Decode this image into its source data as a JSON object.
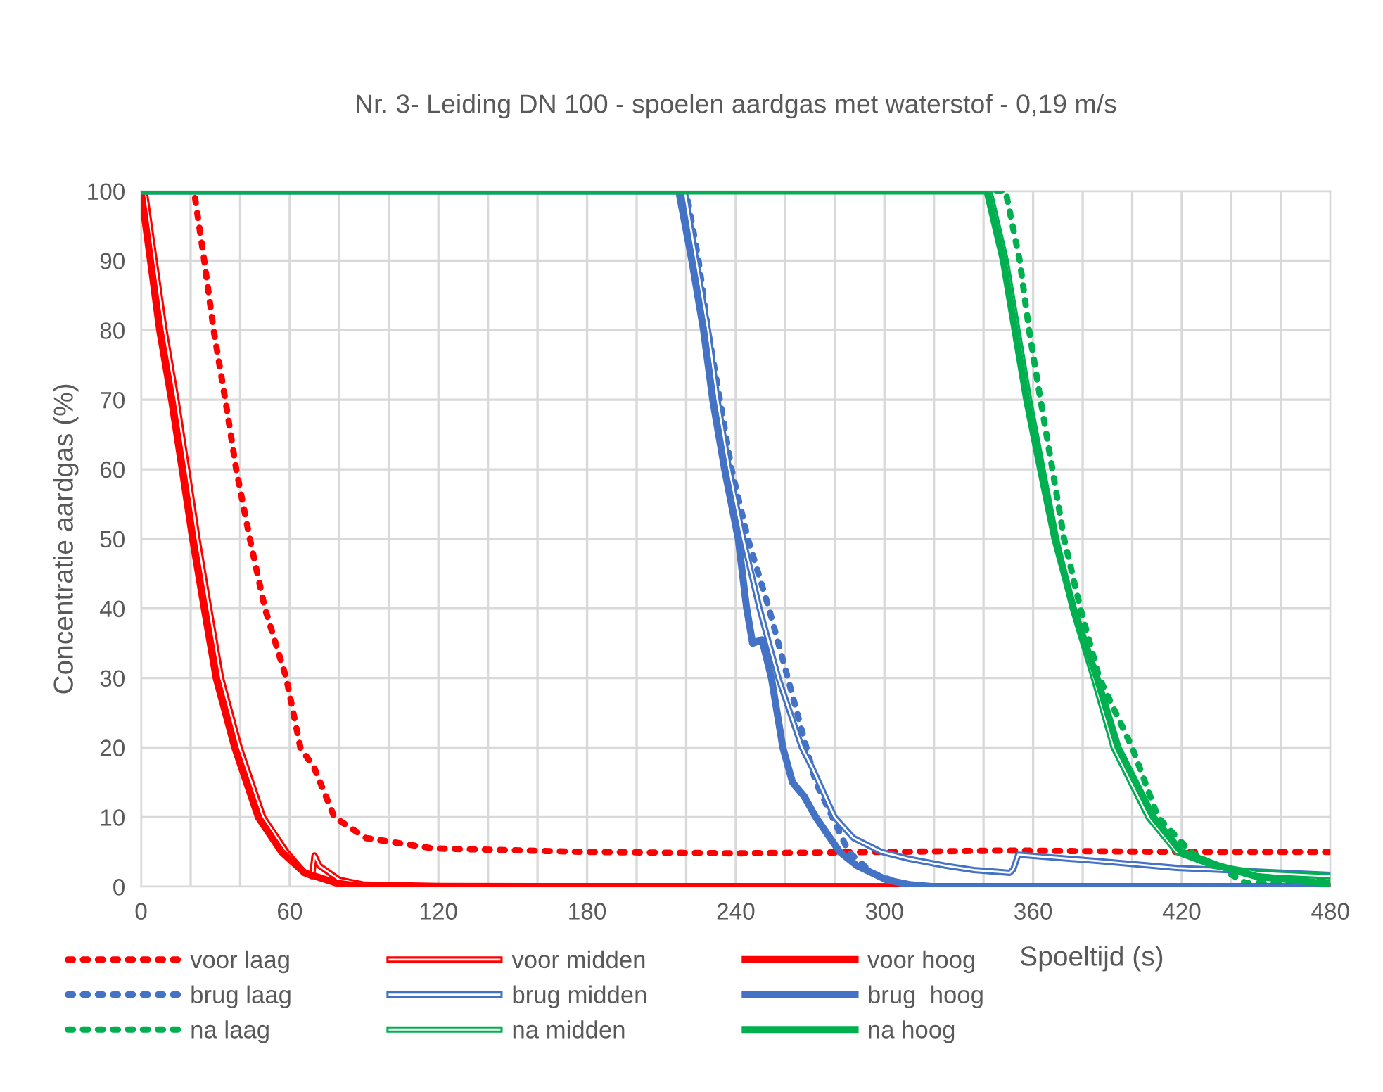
{
  "chart_data": {
    "type": "line",
    "title": "Nr. 3- Leiding DN 100 - spoelen aardgas met waterstof - 0,19 m/s",
    "xlabel": "Spoeltijd (s)",
    "ylabel": "Concentratie aardgas (%)",
    "xlim": [
      0,
      480
    ],
    "ylim": [
      0,
      100
    ],
    "xticks": [
      0,
      {
        "value": 20,
        "label": null
      },
      {
        "value": 40,
        "label": null
      },
      60,
      {
        "value": 80,
        "label": null
      },
      {
        "value": 100,
        "label": null
      },
      120,
      {
        "value": 140,
        "label": null
      },
      {
        "value": 160,
        "label": null
      },
      180,
      {
        "value": 200,
        "label": null
      },
      {
        "value": 220,
        "label": null
      },
      240,
      {
        "value": 260,
        "label": null
      },
      {
        "value": 280,
        "label": null
      },
      300,
      {
        "value": 320,
        "label": null
      },
      {
        "value": 340,
        "label": null
      },
      360,
      {
        "value": 380,
        "label": null
      },
      {
        "value": 400,
        "label": null
      },
      420,
      {
        "value": 440,
        "label": null
      },
      {
        "value": 460,
        "label": null
      },
      480
    ],
    "yticks": [
      0,
      10,
      20,
      30,
      40,
      50,
      60,
      70,
      80,
      90,
      100
    ],
    "grid": true,
    "legend": "bottom",
    "marker": "none",
    "series": [
      {
        "name": "voor laag",
        "color": "#ff0000",
        "line_style": "dotted",
        "x": [
          0,
          21.4,
          25.5,
          29.3,
          34,
          38.4,
          43.9,
          50,
          58.6,
          64.3,
          70,
          78,
          90.8,
          118,
          180,
          240,
          300,
          350,
          420,
          480
        ],
        "values": [
          100,
          100,
          90,
          80,
          70,
          60,
          50,
          40,
          30,
          20,
          17,
          10,
          7,
          5.5,
          5,
          4.8,
          5,
          5.2,
          5,
          5
        ]
      },
      {
        "name": "brug laag",
        "color": "#4472c4",
        "line_style": "dotted",
        "x": [
          0,
          220,
          225,
          228.8,
          233.6,
          238.3,
          244.9,
          253.4,
          261,
          268.5,
          272.3,
          279,
          285.6,
          295,
          306,
          320,
          480
        ],
        "values": [
          100,
          100,
          90,
          80,
          70,
          60,
          50,
          40,
          30,
          20,
          15,
          10,
          5,
          2,
          0.5,
          0,
          0
        ]
      },
      {
        "name": "na laag",
        "color": "#00b050",
        "line_style": "dotted",
        "x": [
          0,
          348.9,
          354.6,
          358.4,
          363,
          367.8,
          372.5,
          379.1,
          386.7,
          400,
          410.4,
          423.6,
          438.8,
          446,
          480
        ],
        "values": [
          100,
          100,
          90,
          80,
          70,
          60,
          50,
          40,
          30,
          20,
          10,
          5,
          2,
          0.5,
          0.8
        ]
      },
      {
        "name": "voor midden",
        "color": "#ff0000",
        "line_style": "solid",
        "x": [
          0,
          1.5,
          5.5,
          9.5,
          14.3,
          18.6,
          22.8,
          27.5,
          32.3,
          39.8,
          49.3,
          58.7,
          66,
          69,
          70,
          72,
          80,
          90,
          120,
          480
        ],
        "values": [
          100,
          100,
          90,
          80,
          70,
          60,
          50,
          40,
          30,
          20,
          10,
          5,
          2,
          1.5,
          4.5,
          3,
          1,
          0.3,
          0.1,
          0
        ]
      },
      {
        "name": "brug midden",
        "color": "#4472c4",
        "line_style": "solid",
        "x": [
          0,
          219.4,
          224,
          228.8,
          232.6,
          237.3,
          243,
          249.6,
          257.2,
          266.7,
          271,
          279.9,
          287.5,
          298.8,
          310,
          325,
          336,
          350.6,
          352,
          354,
          385.8,
          418,
          480
        ],
        "values": [
          100,
          100,
          90,
          80,
          70,
          60,
          50,
          40,
          30,
          20,
          17,
          10,
          7,
          5,
          4,
          3,
          2.4,
          2,
          2.5,
          4.6,
          3.7,
          2.7,
          1.7
        ]
      },
      {
        "name": "na midden",
        "color": "#00b050",
        "line_style": "solid",
        "x": [
          0,
          342.4,
          349,
          353.7,
          358.4,
          363.8,
          369.3,
          376,
          384.5,
          392.5,
          406.5,
          418,
          433,
          450,
          480
        ],
        "values": [
          100,
          100,
          90,
          80,
          70,
          60,
          50,
          40,
          30,
          20,
          10,
          5,
          3,
          2,
          1.5
        ]
      },
      {
        "name": "voor hoog",
        "color": "#ff0000",
        "x": [
          0,
          3.8,
          7.5,
          12.3,
          16.6,
          20.8,
          25.5,
          30.3,
          37.8,
          47.3,
          56.7,
          66,
          79,
          90,
          480
        ],
        "values": [
          100,
          90,
          80,
          70,
          60,
          50,
          40,
          30,
          20,
          10,
          5,
          2,
          0.5,
          0,
          0
        ]
      },
      {
        "name": "brug  hoog",
        "color": "#4472c4",
        "x": [
          0,
          217,
          222.3,
          227,
          230.7,
          235.5,
          241,
          244.4,
          246.8,
          250.6,
          254.4,
          259,
          262.9,
          267.6,
          272.3,
          282,
          289,
          300.7,
          310,
          320,
          480
        ],
        "values": [
          100,
          100,
          90,
          80,
          70,
          60,
          50,
          40,
          35,
          35.5,
          30,
          20,
          15,
          13,
          10,
          5,
          3,
          1,
          0.3,
          0,
          0
        ]
      },
      {
        "name": "na hoog",
        "color": "#00b050",
        "x": [
          0,
          341.4,
          348,
          352.7,
          357.4,
          363,
          368.8,
          376.3,
          385.8,
          394.3,
          408.5,
          419.9,
          435,
          450,
          476.6,
          480
        ],
        "values": [
          100,
          100,
          90,
          80,
          70,
          60,
          50,
          40,
          30,
          20,
          10,
          5,
          3,
          1.5,
          0.5,
          0.5
        ]
      }
    ]
  }
}
